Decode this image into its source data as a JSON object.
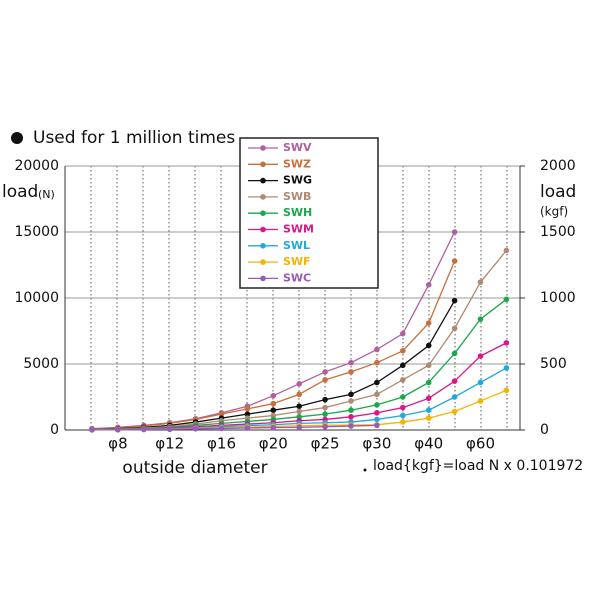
{
  "chart_data": {
    "type": "line",
    "title": "Used for 1 million times",
    "y_label": "load",
    "y_unit": "(N)",
    "y2_label": "load",
    "y2_unit": "(kgf)",
    "x_label": "outside diameter",
    "note": "load{kgf}=load N x 0.101972",
    "categories": [
      null,
      "φ8",
      null,
      "φ12",
      null,
      "φ16",
      null,
      "φ20",
      null,
      "φ25",
      null,
      "φ30",
      null,
      "φ40",
      null,
      "φ60",
      null
    ],
    "ylim": [
      0,
      20000
    ],
    "yticks": [
      0,
      5000,
      10000,
      15000,
      20000
    ],
    "y2lim": [
      0,
      2000
    ],
    "y2ticks": [
      0,
      500,
      1000,
      1500,
      2000
    ],
    "grid": true,
    "series": [
      {
        "name": "SWV",
        "color": "#b0609e",
        "values": [
          100,
          200,
          350,
          550,
          850,
          1300,
          1800,
          2600,
          3500,
          4400,
          5100,
          6100,
          7300,
          11000,
          15000,
          null,
          null
        ]
      },
      {
        "name": "SWZ",
        "color": "#c8703c",
        "values": [
          80,
          150,
          300,
          500,
          800,
          1200,
          1600,
          2000,
          2700,
          3800,
          4400,
          5100,
          6000,
          8100,
          12800,
          null,
          null
        ]
      },
      {
        "name": "SWG",
        "color": "#111111",
        "values": [
          50,
          100,
          200,
          350,
          600,
          900,
          1200,
          1500,
          1800,
          2300,
          2700,
          3600,
          4900,
          6400,
          9800,
          null,
          null
        ]
      },
      {
        "name": "SWB",
        "color": "#b08a72",
        "values": [
          40,
          80,
          150,
          250,
          450,
          700,
          900,
          1100,
          1400,
          1700,
          2200,
          2700,
          3800,
          4900,
          7700,
          11200,
          13600
        ]
      },
      {
        "name": "SWH",
        "color": "#1aa84a",
        "values": [
          30,
          60,
          120,
          200,
          350,
          500,
          650,
          800,
          1000,
          1200,
          1500,
          1900,
          2500,
          3600,
          5800,
          8400,
          9900
        ]
      },
      {
        "name": "SWM",
        "color": "#e0148a",
        "values": [
          20,
          40,
          80,
          150,
          250,
          350,
          450,
          550,
          700,
          800,
          1000,
          1300,
          1700,
          2400,
          3700,
          5600,
          6600
        ]
      },
      {
        "name": "SWL",
        "color": "#20a8e0",
        "values": [
          15,
          30,
          60,
          100,
          170,
          250,
          330,
          400,
          500,
          550,
          600,
          800,
          1100,
          1500,
          2500,
          3600,
          4700
        ]
      },
      {
        "name": "SWF",
        "color": "#f5b400",
        "values": [
          10,
          20,
          40,
          70,
          120,
          170,
          220,
          270,
          320,
          360,
          380,
          400,
          600,
          900,
          1400,
          2200,
          3000
        ]
      },
      {
        "name": "SWC",
        "color": "#9a5ab8",
        "values": [
          10,
          20,
          40,
          60,
          90,
          120,
          150,
          180,
          200,
          250,
          300,
          350,
          null,
          null,
          null,
          null,
          null
        ]
      }
    ]
  }
}
